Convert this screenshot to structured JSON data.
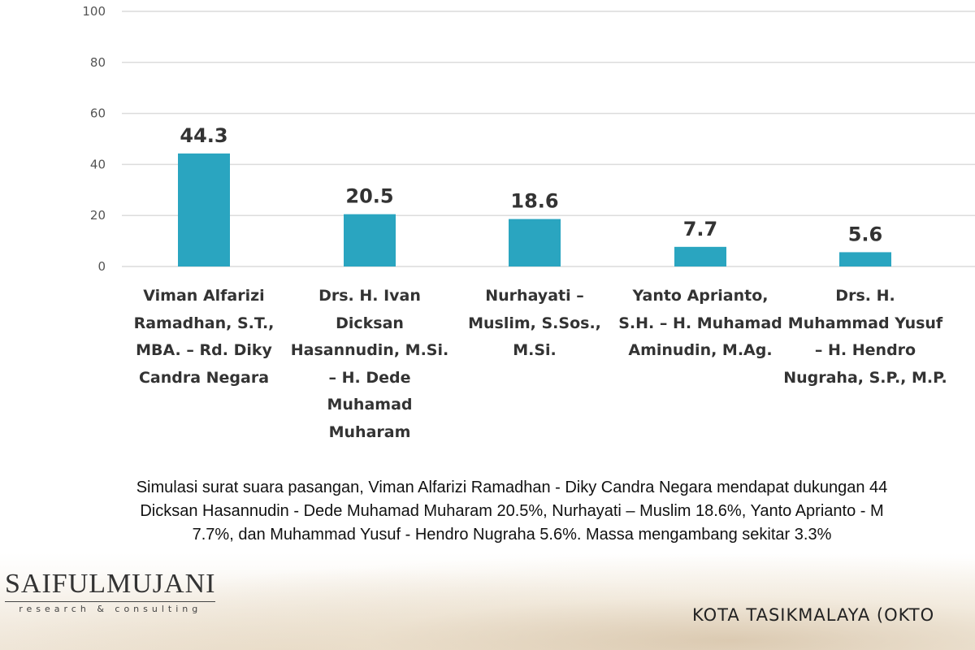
{
  "chart_data": {
    "type": "bar",
    "categories": [
      "Viman Alfarizi\nRamadhan, S.T.,\nMBA. – Rd. Diky\nCandra Negara",
      "Drs. H. Ivan\nDicksan\nHasannudin, M.Si.\n– H. Dede\nMuhamad\nMuharam",
      "Nurhayati –\nMuslim, S.Sos.,\nM.Si.",
      "Yanto Aprianto,\nS.H. – H. Muhamad\nAminudin, M.Ag.",
      "Drs. H.\nMuhammad Yusuf\n– H. Hendro\nNugraha, S.P., M.P."
    ],
    "values": [
      44.3,
      20.5,
      18.6,
      7.7,
      5.6
    ],
    "value_labels": [
      "44.3",
      "20.5",
      "18.6",
      "7.7",
      "5.6"
    ],
    "y_ticks": [
      "0",
      "20",
      "40",
      "60",
      "80",
      "100"
    ],
    "ylim": [
      0,
      100
    ],
    "grid": true,
    "bar_color": "#2aa5c0"
  },
  "caption": "Simulasi surat suara pasangan, Viman Alfarizi Ramadhan - Diky Candra Negara mendapat dukungan 44\nDicksan Hasannudin - Dede Muhamad Muharam 20.5%, Nurhayati – Muslim 18.6%, Yanto Aprianto - M\n7.7%, dan Muhammad Yusuf - Hendro Nugraha 5.6%. Massa mengambang sekitar 3.3%",
  "logo": {
    "name": "SAIFULMUJANI",
    "sub": "research & consulting"
  },
  "footer_place": "KOTA TASIKMALAYA (OKTO"
}
